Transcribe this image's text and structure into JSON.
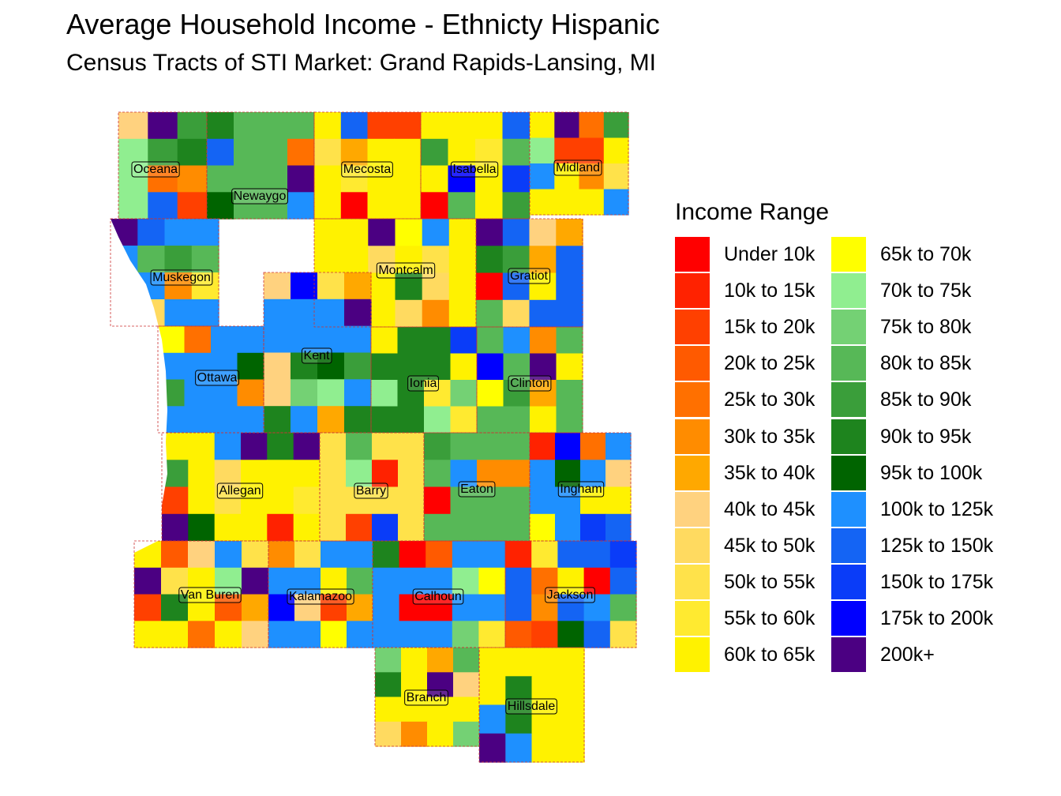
{
  "title": "Average Household Income - Ethnicty Hispanic",
  "subtitle": "Census Tracts of STI Market: Grand Rapids-Lansing, MI",
  "legend": {
    "title": "Income Range",
    "items": [
      {
        "label": "Under 10k",
        "color": "#FF0000"
      },
      {
        "label": "10k to 15k",
        "color": "#FF2200"
      },
      {
        "label": "15k to 20k",
        "color": "#FF4000"
      },
      {
        "label": "20k to 25k",
        "color": "#FF5A00"
      },
      {
        "label": "25k to 30k",
        "color": "#FF7000"
      },
      {
        "label": "30k to 35k",
        "color": "#FF8C00"
      },
      {
        "label": "35k to 40k",
        "color": "#FFA800"
      },
      {
        "label": "40k to 45k",
        "color": "#FFD27F"
      },
      {
        "label": "45k to 50k",
        "color": "#FFDA60"
      },
      {
        "label": "50k to 55k",
        "color": "#FFE24A"
      },
      {
        "label": "55k to 60k",
        "color": "#FFEA30"
      },
      {
        "label": "60k to 65k",
        "color": "#FFF200"
      },
      {
        "label": "65k to 70k",
        "color": "#FFFF00"
      },
      {
        "label": "70k to 75k",
        "color": "#90EE90"
      },
      {
        "label": "75k to 80k",
        "color": "#74D174"
      },
      {
        "label": "80k to 85k",
        "color": "#57B857"
      },
      {
        "label": "85k to 90k",
        "color": "#3A9E3A"
      },
      {
        "label": "90k to 95k",
        "color": "#1E841E"
      },
      {
        "label": "95k to 100k",
        "color": "#006400"
      },
      {
        "label": "100k to 125k",
        "color": "#1E90FF"
      },
      {
        "label": "125k to 150k",
        "color": "#1464F4"
      },
      {
        "label": "150k to 175k",
        "color": "#0A3CF8"
      },
      {
        "label": "175k to 200k",
        "color": "#0000FF"
      },
      {
        "label": "200k+",
        "color": "#4B0082"
      }
    ]
  },
  "counties": [
    {
      "name": "Oceana",
      "dominant": "70k to 75k"
    },
    {
      "name": "Newaygo",
      "dominant": "80k to 85k"
    },
    {
      "name": "Mecosta",
      "dominant": "60k to 65k"
    },
    {
      "name": "Isabella",
      "dominant": "60k to 65k"
    },
    {
      "name": "Midland",
      "dominant": "60k to 65k"
    },
    {
      "name": "Muskegon",
      "dominant": "100k to 125k"
    },
    {
      "name": "Montcalm",
      "dominant": "60k to 65k"
    },
    {
      "name": "Gratiot",
      "dominant": "125k to 150k"
    },
    {
      "name": "Kent",
      "dominant": "100k to 125k"
    },
    {
      "name": "Ottawa",
      "dominant": "100k to 125k"
    },
    {
      "name": "Ionia",
      "dominant": "90k to 95k"
    },
    {
      "name": "Clinton",
      "dominant": "80k to 85k"
    },
    {
      "name": "Allegan",
      "dominant": "60k to 65k"
    },
    {
      "name": "Barry",
      "dominant": "50k to 55k"
    },
    {
      "name": "Eaton",
      "dominant": "80k to 85k"
    },
    {
      "name": "Ingham",
      "dominant": "100k to 125k"
    },
    {
      "name": "Van Buren",
      "dominant": "60k to 65k"
    },
    {
      "name": "Kalamazoo",
      "dominant": "100k to 125k"
    },
    {
      "name": "Calhoun",
      "dominant": "100k to 125k"
    },
    {
      "name": "Jackson",
      "dominant": "125k to 150k"
    },
    {
      "name": "Branch",
      "dominant": "60k to 65k"
    },
    {
      "name": "Hillsdale",
      "dominant": "60k to 65k"
    }
  ]
}
